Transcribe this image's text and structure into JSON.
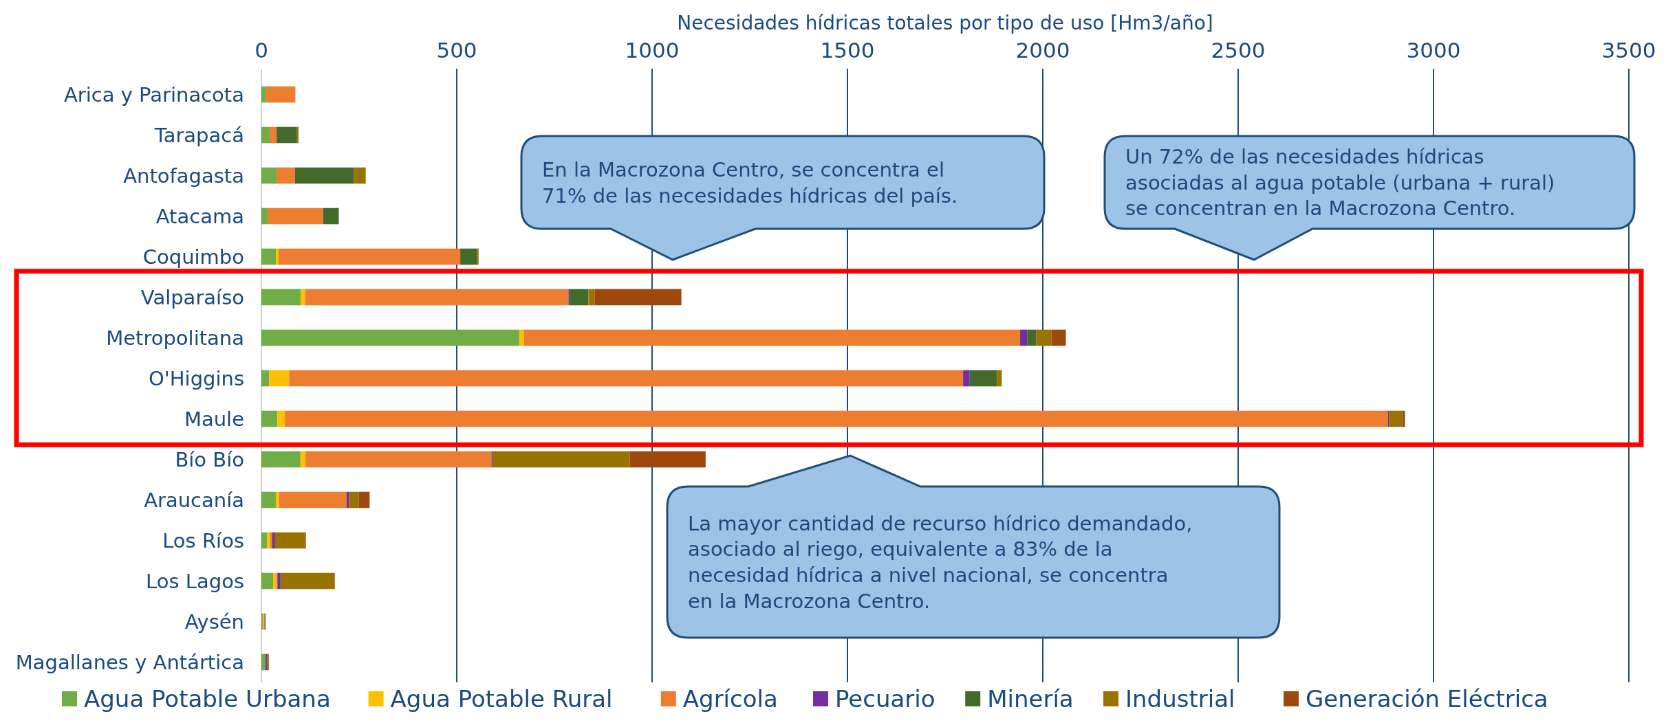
{
  "chart_data": {
    "type": "bar",
    "orientation": "horizontal",
    "stacked": true,
    "xlabel": "Necesidades hídricas totales por tipo de uso [Hm3/año]",
    "categories": [
      "Arica y Parinacota",
      "Tarapacá",
      "Antofagasta",
      "Atacama",
      "Coquimbo",
      "Valparaíso",
      "Metropolitana",
      "O'Higgins",
      "Maule",
      "Bío Bío",
      "Araucanía",
      "Los Ríos",
      "Los Lagos",
      "Aysén",
      "Magallanes y Antártica"
    ],
    "series": [
      {
        "name": "Agua Potable Urbana",
        "color": "#70ad47",
        "values": [
          12,
          21,
          39,
          16,
          38,
          101,
          660,
          20,
          41,
          100,
          37,
          15,
          30,
          4,
          10
        ]
      },
      {
        "name": "Agua Potable Rural",
        "color": "#ffc000",
        "values": [
          0,
          0,
          0,
          0,
          6,
          11,
          12,
          51,
          19,
          13,
          8,
          8,
          9,
          2,
          null
        ]
      },
      {
        "name": "Agrícola",
        "color": "#ed7d31",
        "values": [
          75,
          18,
          47,
          142,
          465,
          674,
          1270,
          1725,
          2823,
          476,
          173,
          5,
          2,
          1,
          0
        ]
      },
      {
        "name": "Pecuario",
        "color": "#7030a0",
        "values": [
          0,
          0,
          0,
          0,
          0,
          3,
          18,
          17,
          3,
          3,
          6,
          7,
          8,
          1,
          4
        ]
      },
      {
        "name": "Minería",
        "color": "#436a2b",
        "values": [
          0,
          51,
          151,
          40,
          43,
          48,
          23,
          70,
          0,
          0,
          0,
          0,
          0,
          0,
          0
        ]
      },
      {
        "name": "Industrial",
        "color": "#997300",
        "values": [
          0,
          5,
          30,
          0,
          4,
          16,
          39,
          12,
          34,
          351,
          25,
          77,
          139,
          3,
          3
        ]
      },
      {
        "name": "Generación Eléctrica",
        "color": "#9e480e",
        "values": [
          0,
          0,
          0,
          0,
          0,
          222,
          37,
          0,
          7,
          194,
          28,
          2,
          0,
          0,
          2
        ]
      }
    ],
    "xlim": [
      0,
      3500
    ],
    "xticks": [
      0,
      500,
      1000,
      1500,
      2000,
      2500,
      3000,
      3500
    ],
    "grid": "x",
    "legend": "bottom",
    "annotations": [
      "En la Macrozona Centro, se concentra el 71% de las necesidades hídricas del país.",
      "Un 72% de las necesidades hídricas asociadas al agua potable (urbana + rural) se concentran en la Macrozona Centro.",
      "La mayor cantidad de recurso hídrico demandado, asociado al riego, equivalente a 83% de la necesidad hídrica a nivel nacional, se concentra en la Macrozona Centro."
    ]
  }
}
